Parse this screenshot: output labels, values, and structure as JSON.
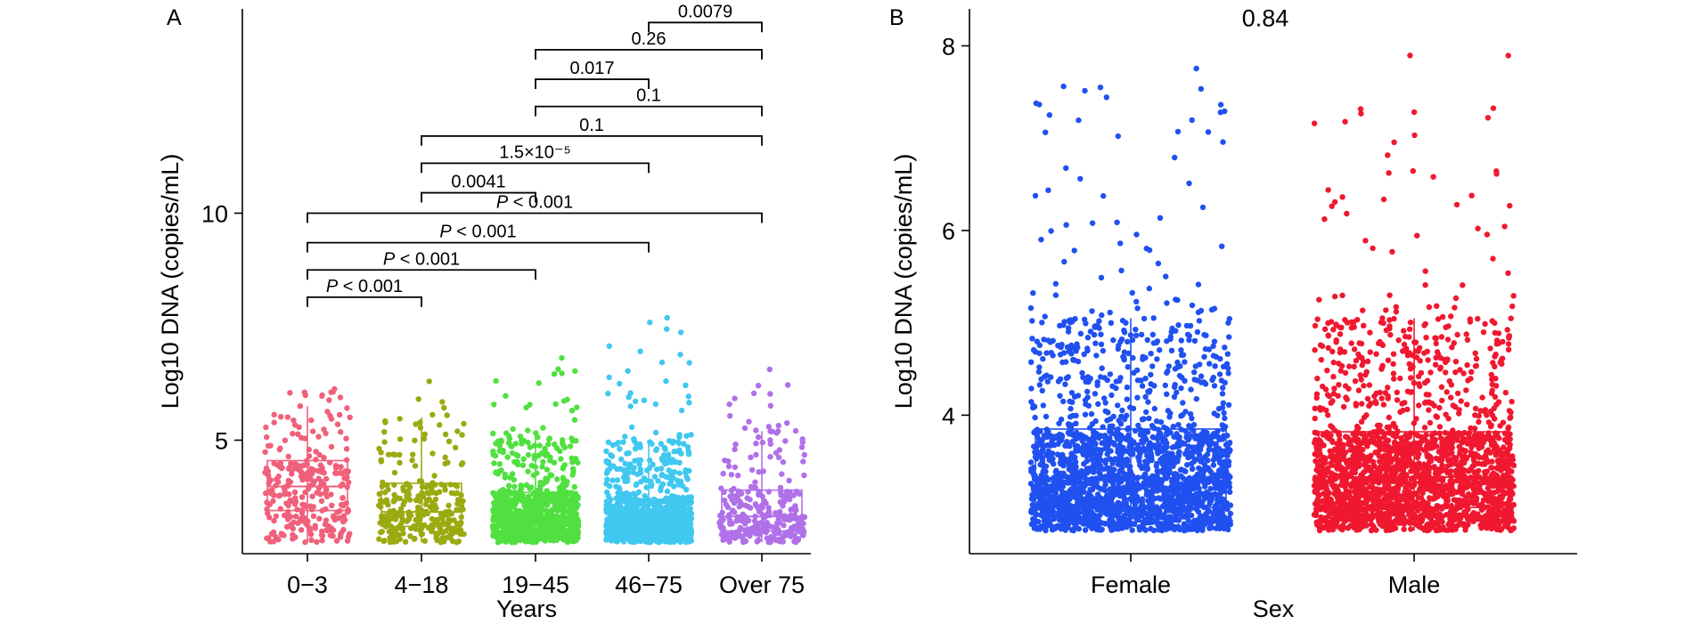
{
  "chart_data": [
    {
      "panel": "A",
      "type": "box",
      "title": "",
      "xlabel": "Years",
      "ylabel": "Log10 DNA (copies/mL)",
      "ylim": [
        2.5,
        14.5
      ],
      "yticks": [
        5,
        10
      ],
      "categories": [
        "0−3",
        "4−18",
        "19−45",
        "46−75",
        "Over 75"
      ],
      "colors": [
        "#f0607a",
        "#9aaa10",
        "#50e040",
        "#40c8f0",
        "#b070e8"
      ],
      "boxes": [
        {
          "q1": 3.45,
          "median": 3.98,
          "q3": 4.55,
          "whisker_low": 2.75,
          "whisker_high": 5.75,
          "max": 6.2
        },
        {
          "q1": 3.1,
          "median": 3.42,
          "q3": 4.05,
          "whisker_low": 2.75,
          "whisker_high": 5.5,
          "max": 6.35
        },
        {
          "q1": 3.0,
          "median": 3.28,
          "q3": 3.85,
          "whisker_low": 2.75,
          "whisker_high": 5.1,
          "max": 7.0
        },
        {
          "q1": 3.0,
          "median": 3.25,
          "q3": 3.7,
          "whisker_low": 2.75,
          "whisker_high": 5.0,
          "max": 7.9
        },
        {
          "q1": 3.0,
          "median": 3.32,
          "q3": 3.9,
          "whisker_low": 2.75,
          "whisker_high": 5.2,
          "max": 6.6
        }
      ],
      "comparisons": [
        {
          "from": 3,
          "to": 4,
          "y": 14.2,
          "label": "0.0079"
        },
        {
          "from": 2,
          "to": 4,
          "y": 13.6,
          "label": "0.26"
        },
        {
          "from": 2,
          "to": 3,
          "y": 12.95,
          "label": "0.017"
        },
        {
          "from": 2,
          "to": 4,
          "y": 12.35,
          "label": "0.1"
        },
        {
          "from": 1,
          "to": 4,
          "y": 11.7,
          "label": "0.1"
        },
        {
          "from": 1,
          "to": 3,
          "y": 11.1,
          "label": "1.5×10⁻⁵"
        },
        {
          "from": 1,
          "to": 2,
          "y": 10.45,
          "label": "0.0041"
        },
        {
          "from": 0,
          "to": 4,
          "y": 10.0,
          "label": "P < 0.001"
        },
        {
          "from": 0,
          "to": 3,
          "y": 9.35,
          "label": "P < 0.001"
        },
        {
          "from": 0,
          "to": 2,
          "y": 8.75,
          "label": "P < 0.001"
        },
        {
          "from": 0,
          "to": 1,
          "y": 8.15,
          "label": "P < 0.001"
        }
      ]
    },
    {
      "panel": "B",
      "type": "box",
      "title": "",
      "xlabel": "Sex",
      "ylabel": "Log10 DNA (copies/mL)",
      "ylim": [
        2.5,
        8.4
      ],
      "yticks": [
        4,
        6,
        8
      ],
      "categories": [
        "Female",
        "Male"
      ],
      "colors": [
        "#2050f0",
        "#f01830"
      ],
      "boxes": [
        {
          "q1": 3.0,
          "median": 3.32,
          "q3": 3.85,
          "whisker_low": 2.75,
          "whisker_high": 5.05,
          "max": 7.8
        },
        {
          "q1": 3.0,
          "median": 3.33,
          "q3": 3.82,
          "whisker_low": 2.75,
          "whisker_high": 5.05,
          "max": 7.9
        }
      ],
      "comparisons": [
        {
          "from": 0,
          "to": 1,
          "y": 8.3,
          "label": "0.84",
          "bracket": false
        }
      ]
    }
  ]
}
